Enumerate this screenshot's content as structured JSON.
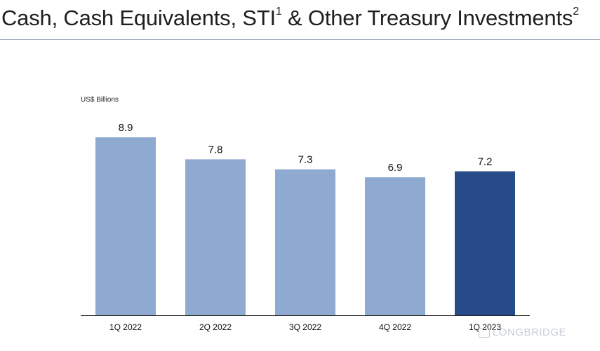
{
  "title": {
    "text_a": "Cash, Cash Equivalents, STI",
    "sup_a": "1",
    "text_b": " & Other Treasury Investments",
    "sup_b": "2"
  },
  "unit_label": "US$ Billions",
  "watermark": "LONGBRIDGE",
  "colors": {
    "bar": "#8faad0",
    "bar_highlight": "#264b88",
    "axis": "#222222"
  },
  "chart_data": {
    "type": "bar",
    "title": "Cash, Cash Equivalents, STI & Other Treasury Investments",
    "ylabel": "US$ Billions",
    "categories": [
      "1Q 2022",
      "2Q 2022",
      "3Q 2022",
      "4Q 2022",
      "1Q 2023"
    ],
    "values": [
      8.9,
      7.8,
      7.3,
      6.9,
      7.2
    ],
    "data_labels": [
      "8.9",
      "7.8",
      "7.3",
      "6.9",
      "7.2"
    ],
    "highlight_index": 4,
    "ylim": [
      0,
      8.9
    ],
    "grid": false,
    "legend": "none"
  }
}
